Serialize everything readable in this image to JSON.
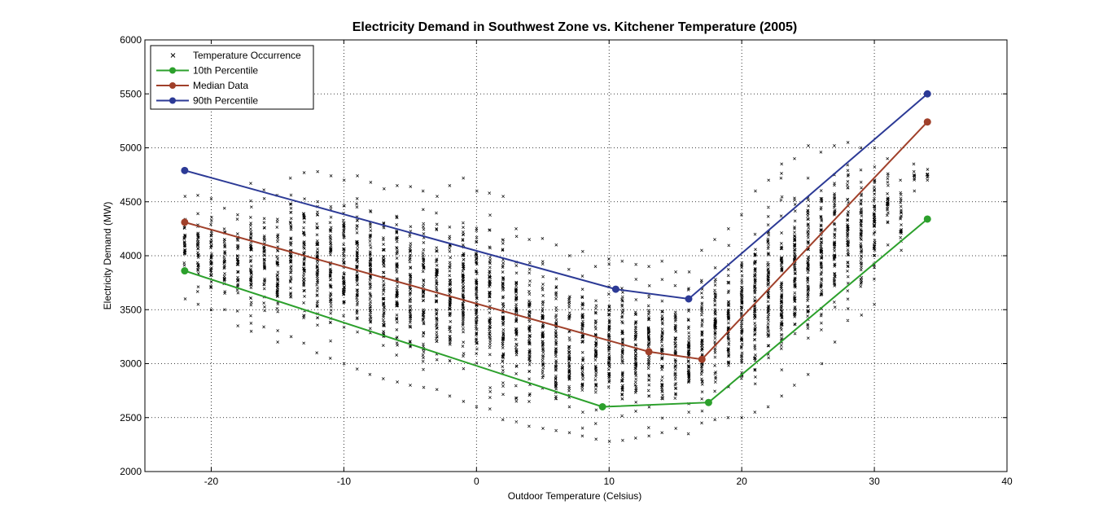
{
  "chart_data": {
    "type": "scatter",
    "title": "Electricity Demand in Southwest Zone vs. Kitchener Temperature (2005)",
    "xlabel": "Outdoor Temperature (Celsius)",
    "ylabel": "Electricity Demand (MW)",
    "xlim": [
      -25,
      40
    ],
    "ylim": [
      2000,
      6000
    ],
    "xticks": [
      -20,
      -10,
      0,
      10,
      20,
      30,
      40
    ],
    "yticks": [
      2000,
      2500,
      3000,
      3500,
      4000,
      4500,
      5000,
      5500,
      6000
    ],
    "grid": true,
    "legend_position": "top-left",
    "scatter": {
      "name": "Temperature Occurrence",
      "color": "#000000",
      "marker": "x",
      "ranges": [
        {
          "x": -22,
          "min": 3600,
          "max": 4550
        },
        {
          "x": -21,
          "min": 3550,
          "max": 4560
        },
        {
          "x": -20,
          "min": 3500,
          "max": 4530
        },
        {
          "x": -19,
          "min": 3500,
          "max": 4440
        },
        {
          "x": -18,
          "min": 3350,
          "max": 4380
        },
        {
          "x": -17,
          "min": 3300,
          "max": 4670
        },
        {
          "x": -16,
          "min": 3340,
          "max": 4610
        },
        {
          "x": -15,
          "min": 3200,
          "max": 4560
        },
        {
          "x": -14,
          "min": 3250,
          "max": 4720
        },
        {
          "x": -13,
          "min": 3190,
          "max": 4770
        },
        {
          "x": -12,
          "min": 3100,
          "max": 4780
        },
        {
          "x": -11,
          "min": 3050,
          "max": 4740
        },
        {
          "x": -10,
          "min": 3000,
          "max": 4700
        },
        {
          "x": -9,
          "min": 2950,
          "max": 4740
        },
        {
          "x": -8,
          "min": 2900,
          "max": 4680
        },
        {
          "x": -7,
          "min": 2860,
          "max": 4620
        },
        {
          "x": -6,
          "min": 2830,
          "max": 4650
        },
        {
          "x": -5,
          "min": 2800,
          "max": 4640
        },
        {
          "x": -4,
          "min": 2780,
          "max": 4600
        },
        {
          "x": -3,
          "min": 2760,
          "max": 4550
        },
        {
          "x": -2,
          "min": 2700,
          "max": 4650
        },
        {
          "x": -1,
          "min": 2650,
          "max": 4720
        },
        {
          "x": 0,
          "min": 2600,
          "max": 4600
        },
        {
          "x": 1,
          "min": 2580,
          "max": 4580
        },
        {
          "x": 2,
          "min": 2480,
          "max": 4550
        },
        {
          "x": 3,
          "min": 2460,
          "max": 4250
        },
        {
          "x": 4,
          "min": 2420,
          "max": 4150
        },
        {
          "x": 5,
          "min": 2400,
          "max": 4160
        },
        {
          "x": 6,
          "min": 2380,
          "max": 4100
        },
        {
          "x": 7,
          "min": 2360,
          "max": 4000
        },
        {
          "x": 8,
          "min": 2330,
          "max": 4040
        },
        {
          "x": 9,
          "min": 2300,
          "max": 3900
        },
        {
          "x": 10,
          "min": 2280,
          "max": 3970
        },
        {
          "x": 11,
          "min": 2290,
          "max": 3950
        },
        {
          "x": 12,
          "min": 2310,
          "max": 3920
        },
        {
          "x": 13,
          "min": 2330,
          "max": 3900
        },
        {
          "x": 14,
          "min": 2360,
          "max": 3950
        },
        {
          "x": 15,
          "min": 2400,
          "max": 3850
        },
        {
          "x": 16,
          "min": 2350,
          "max": 3850
        },
        {
          "x": 17,
          "min": 2450,
          "max": 4050
        },
        {
          "x": 18,
          "min": 2480,
          "max": 4150
        },
        {
          "x": 19,
          "min": 2500,
          "max": 4250
        },
        {
          "x": 20,
          "min": 2500,
          "max": 4380
        },
        {
          "x": 21,
          "min": 2550,
          "max": 4600
        },
        {
          "x": 22,
          "min": 2600,
          "max": 4700
        },
        {
          "x": 23,
          "min": 2700,
          "max": 4850
        },
        {
          "x": 24,
          "min": 2800,
          "max": 4900
        },
        {
          "x": 25,
          "min": 2900,
          "max": 5020
        },
        {
          "x": 26,
          "min": 3000,
          "max": 4960
        },
        {
          "x": 27,
          "min": 3200,
          "max": 5020
        },
        {
          "x": 28,
          "min": 3400,
          "max": 5050
        },
        {
          "x": 29,
          "min": 3450,
          "max": 5000
        },
        {
          "x": 30,
          "min": 3550,
          "max": 5000
        },
        {
          "x": 31,
          "min": 4100,
          "max": 4900
        },
        {
          "x": 32,
          "min": 4050,
          "max": 4700
        },
        {
          "x": 33,
          "min": 4600,
          "max": 4850
        },
        {
          "x": 34,
          "min": 4700,
          "max": 4800
        }
      ]
    },
    "series": [
      {
        "name": "10th Percentile",
        "color": "#2ca02c",
        "x": [
          -22,
          9.5,
          17.5,
          34
        ],
        "y": [
          3860,
          2600,
          2640,
          4340
        ]
      },
      {
        "name": "Median Data",
        "color": "#a0402a",
        "x": [
          -22,
          13,
          17,
          34
        ],
        "y": [
          4310,
          3110,
          3040,
          5240
        ]
      },
      {
        "name": "90th Percentile",
        "color": "#2c3a96",
        "x": [
          -22,
          10.5,
          16,
          34
        ],
        "y": [
          4790,
          3690,
          3600,
          5500
        ]
      }
    ]
  }
}
